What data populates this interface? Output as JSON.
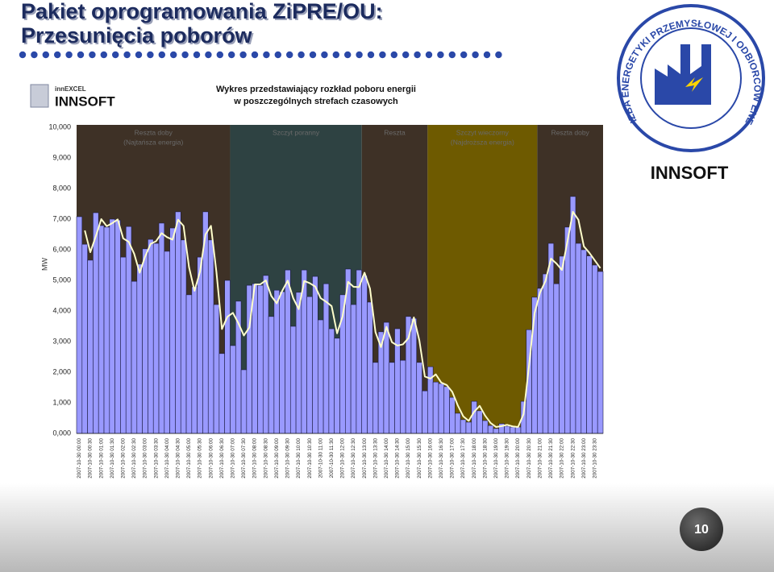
{
  "slide": {
    "title_lines": [
      "Pakiet oprogramowania ZiPRE/OU:",
      "Przesunięcia poborów"
    ],
    "page_number": "10"
  },
  "logo_left": {
    "small": "innEXCEL",
    "brand": "INNSOFT"
  },
  "logo_right": {
    "ring": "IZBA ENERGETYKI PRZEMYSŁOWEJ I ODBIORCÓW ENERGII",
    "brand": "INNSOFT"
  },
  "chart_data": {
    "type": "bar",
    "title": [
      "Wykres przedstawiający rozkład poboru energii",
      "w poszczególnych strefach czasowych"
    ],
    "ylabel": "MW",
    "categories": [
      "2007-10-30 00:00",
      null,
      "2007-10-30 00:30",
      null,
      "2007-10-30 01:00",
      null,
      "2007-10-30 01:30",
      null,
      "2007-10-30 02:00",
      null,
      "2007-10-30 02:30",
      null,
      "2007-10-30 03:00",
      null,
      "2007-10-30 03:30",
      null,
      "2007-10-30 04:00",
      null,
      "2007-10-30 04:30",
      null,
      "2007-10-30 05:00",
      null,
      "2007-10-30 05:30",
      null,
      "2007-10-30 06:00",
      null,
      "2007-10-30 06:30",
      null,
      "2007-10-30 07:00",
      null,
      "2007-10-30 07:30",
      null,
      "2007-10-30 08:00",
      null,
      "2007-10-30 08:30",
      null,
      "2007-10-30 09:00",
      null,
      "2007-10-30 09:30",
      null,
      "2007-10-30 10:00",
      null,
      "2007-10-30 10:30",
      null,
      "2007-10-30 11:00",
      null,
      "2007-10-30 11:30",
      null,
      "2007-10-30 12:00",
      null,
      "2007-10-30 12:30",
      null,
      "2007-10-30 13:00",
      null,
      "2007-10-30 13:30",
      null,
      "2007-10-30 14:00",
      null,
      "2007-10-30 14:30",
      null,
      "2007-10-30 15:00",
      null,
      "2007-10-30 15:30",
      null,
      "2007-10-30 16:00",
      null,
      "2007-10-30 16:30",
      null,
      "2007-10-30 17:00",
      null,
      "2007-10-30 17:30",
      null,
      "2007-10-30 18:00",
      null,
      "2007-10-30 18:30",
      null,
      "2007-10-30 19:00",
      null,
      "2007-10-30 19:30",
      null,
      "2007-10-30 20:00",
      null,
      "2007-10-30 20:30",
      null,
      "2007-10-30 21:00",
      null,
      "2007-10-30 21:30",
      null,
      "2007-10-30 22:00",
      null,
      "2007-10-30 22:30",
      null,
      "2007-10-30 23:00",
      null,
      "2007-10-30 23:30",
      null
    ],
    "series": [
      {
        "type": "bar",
        "color": "#9999ff",
        "values": [
          7080,
          6180,
          5660,
          7210,
          6790,
          6740,
          7000,
          6970,
          5760,
          6760,
          4970,
          5530,
          6030,
          6340,
          6210,
          6870,
          5950,
          6710,
          7240,
          6320,
          4530,
          4790,
          5760,
          7240,
          6320,
          4210,
          2610,
          5000,
          2870,
          4320,
          2080,
          4840,
          4890,
          4840,
          5160,
          3820,
          4680,
          4630,
          5340,
          3500,
          4610,
          5340,
          4470,
          5130,
          3710,
          4890,
          3420,
          3110,
          4530,
          5370,
          4210,
          5340,
          5160,
          4290,
          2320,
          3320,
          3630,
          2320,
          3420,
          2390,
          3820,
          3760,
          2320,
          1390,
          2180,
          1680,
          1630,
          1530,
          1180,
          660,
          450,
          370,
          1050,
          740,
          420,
          260,
          160,
          320,
          240,
          210,
          210,
          1050,
          3390,
          4450,
          4740,
          5210,
          6210,
          4890,
          5790,
          6740,
          7740,
          6210,
          6000,
          5800,
          5500,
          5290
        ]
      },
      {
        "type": "line",
        "color": "#ffffcc",
        "values": [
          null,
          6630,
          5920,
          6440,
          7000,
          6770,
          6870,
          6990,
          6370,
          6260,
          5870,
          5250,
          5780,
          6190,
          6280,
          6540,
          6410,
          6330,
          6980,
          6780,
          5430,
          4660,
          5280,
          6500,
          6780,
          5270,
          3410,
          3810,
          3940,
          3600,
          3200,
          3460,
          4870,
          4870,
          5000,
          4490,
          4250,
          4660,
          4990,
          4420,
          4060,
          4980,
          4910,
          4800,
          4420,
          4300,
          4160,
          3270,
          3820,
          4950,
          4790,
          4780,
          5250,
          4730,
          3310,
          2820,
          3480,
          2980,
          2870,
          2910,
          3110,
          3790,
          3040,
          1860,
          1790,
          1930,
          1660,
          1580,
          1360,
          920,
          560,
          410,
          710,
          900,
          580,
          340,
          210,
          240,
          280,
          230,
          210,
          630,
          2220,
          3920,
          4600,
          4980,
          5710,
          5550,
          5340,
          6270,
          7240,
          6980,
          6110,
          5900,
          5650,
          5400
        ]
      }
    ],
    "zones": [
      {
        "lines": [
          "Reszta doby",
          "(Najtańsza energia)"
        ],
        "start": 0,
        "end": 28,
        "color": "#3e3126"
      },
      {
        "lines": [
          "Szczyt poranny"
        ],
        "start": 28,
        "end": 52,
        "color": "#2e4242"
      },
      {
        "lines": [
          "Reszta"
        ],
        "start": 52,
        "end": 64,
        "color": "#3e3126"
      },
      {
        "lines": [
          "Szczyt wieczorny",
          "(Najdroższa energia)"
        ],
        "start": 64,
        "end": 84,
        "color": "#6e5a00"
      },
      {
        "lines": [
          "Reszta doby"
        ],
        "start": 84,
        "end": 96,
        "color": "#3e3126"
      }
    ],
    "ylim": [
      0,
      10000
    ],
    "yticks": [
      {
        "value": 0,
        "label": "0,000"
      },
      {
        "value": 1000,
        "label": "1,000"
      },
      {
        "value": 2000,
        "label": "2,000"
      },
      {
        "value": 3000,
        "label": "3,000"
      },
      {
        "value": 4000,
        "label": "4,000"
      },
      {
        "value": 5000,
        "label": "5,000"
      },
      {
        "value": 6000,
        "label": "6,000"
      },
      {
        "value": 7000,
        "label": "7,000"
      },
      {
        "value": 8000,
        "label": "8,000"
      },
      {
        "value": 9000,
        "label": "9,000"
      },
      {
        "value": 10000,
        "label": "10,000"
      }
    ]
  }
}
